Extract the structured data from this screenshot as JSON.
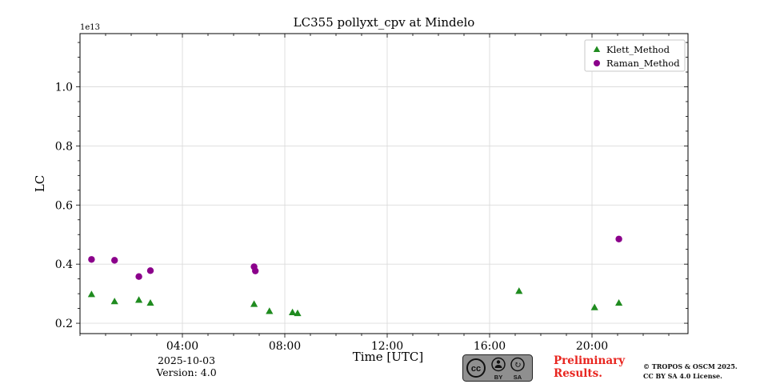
{
  "chart_data": {
    "type": "scatter",
    "title": "LC355 pollyxt_cpv at Mindelo",
    "xlabel": "Time [UTC]",
    "ylabel": "LC",
    "y_offset_text": "1e13",
    "xlim_hours": [
      0,
      23.75
    ],
    "ylim": [
      0.165,
      1.18
    ],
    "yticks": [
      0.2,
      0.4,
      0.6,
      0.8,
      1.0
    ],
    "xticks_hours": [
      4,
      8,
      12,
      16,
      20
    ],
    "xtick_labels": [
      "04:00",
      "08:00",
      "12:00",
      "16:00",
      "20:00"
    ],
    "grid": true,
    "legend_position": "upper right",
    "grid_color": "#dcdcdc",
    "series": [
      {
        "name": "Klett_Method",
        "marker": "triangle",
        "color": "#1f8b1f",
        "points": [
          [
            0.45,
            0.297
          ],
          [
            1.35,
            0.273
          ],
          [
            2.3,
            0.278
          ],
          [
            2.75,
            0.268
          ],
          [
            6.8,
            0.264
          ],
          [
            7.4,
            0.24
          ],
          [
            8.3,
            0.236
          ],
          [
            8.5,
            0.233
          ],
          [
            17.15,
            0.308
          ],
          [
            20.1,
            0.253
          ],
          [
            21.05,
            0.268
          ]
        ]
      },
      {
        "name": "Raman_Method",
        "marker": "circle",
        "color": "#8b008b",
        "points": [
          [
            0.45,
            0.416
          ],
          [
            1.35,
            0.413
          ],
          [
            2.3,
            0.358
          ],
          [
            2.75,
            0.378
          ],
          [
            6.8,
            0.391
          ],
          [
            6.85,
            0.377
          ],
          [
            21.05,
            0.485
          ]
        ]
      }
    ]
  },
  "footer": {
    "date": "2025-10-03",
    "version": "Version: 4.0",
    "preliminary_line1": "Preliminary",
    "preliminary_line2": "Results.",
    "preliminary_color": "#e8251f",
    "license_line1": "© TROPOS & OSCM 2025.",
    "license_line2": "CC BY SA 4.0 License.",
    "cc_badge": {
      "cc": "cc",
      "by": "BY",
      "sa": "SA",
      "sa_arrow_icon": "↻"
    }
  }
}
